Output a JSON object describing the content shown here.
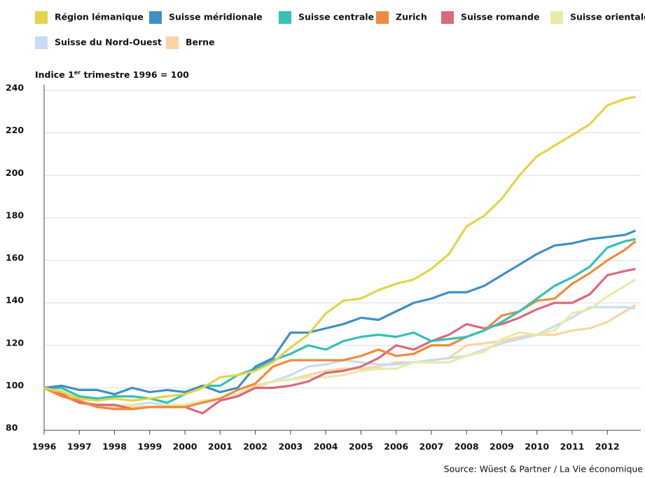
{
  "chart_data": {
    "type": "line",
    "y_label": {
      "text": "Indice 1",
      "superscript": "er",
      "rest": " trimestre 1996 = 100"
    },
    "source": "Source: Wüest & Partner / La Vie économique",
    "legend": "top",
    "grid": true,
    "x": [
      1996,
      1996.5,
      1997,
      1997.5,
      1998,
      1998.5,
      1999,
      1999.5,
      2000,
      2000.5,
      2001,
      2001.5,
      2002,
      2002.5,
      2003,
      2003.5,
      2004,
      2004.5,
      2005,
      2005.5,
      2006,
      2006.5,
      2007,
      2007.5,
      2008,
      2008.5,
      2009,
      2009.5,
      2010,
      2010.5,
      2011,
      2011.5,
      2012,
      2012.5,
      2012.8
    ],
    "xlim": [
      1996,
      2012.95
    ],
    "xticks": [
      1996,
      1997,
      1998,
      1999,
      2000,
      2001,
      2002,
      2003,
      2004,
      2005,
      2006,
      2007,
      2008,
      2009,
      2010,
      2011,
      2012
    ],
    "ylim": [
      80,
      240
    ],
    "yticks": [
      80,
      100,
      120,
      140,
      160,
      180,
      200,
      220,
      240
    ],
    "series": [
      {
        "name": "Région lémanique",
        "color": "#e3d44a",
        "values": [
          100,
          98,
          95,
          94,
          95,
          94,
          95,
          96,
          97,
          100,
          105,
          106,
          108,
          112,
          119,
          125,
          135,
          141,
          142,
          146,
          149,
          151,
          156,
          163,
          176,
          181,
          189,
          200,
          209,
          214,
          219,
          224,
          233,
          236,
          237
        ]
      },
      {
        "name": "Suisse méridionale",
        "color": "#3f8fc4",
        "values": [
          100,
          101,
          99,
          99,
          97,
          100,
          98,
          99,
          98,
          101,
          98,
          100,
          110,
          114,
          126,
          126,
          128,
          130,
          133,
          132,
          136,
          140,
          142,
          145,
          145,
          148,
          153,
          158,
          163,
          167,
          168,
          170,
          171,
          172,
          174
        ]
      },
      {
        "name": "Suisse centrale",
        "color": "#33c1b6",
        "values": [
          100,
          100,
          96,
          95,
          96,
          96,
          95,
          93,
          97,
          101,
          101,
          106,
          109,
          113,
          116,
          120,
          118,
          122,
          124,
          125,
          124,
          126,
          122,
          123,
          124,
          127,
          131,
          136,
          142,
          148,
          152,
          157,
          166,
          169,
          170
        ]
      },
      {
        "name": "Zurich",
        "color": "#f08a3e",
        "values": [
          100,
          96,
          94,
          91,
          90,
          90,
          91,
          91,
          91,
          93,
          95,
          99,
          102,
          110,
          113,
          113,
          113,
          113,
          115,
          118,
          115,
          116,
          120,
          120,
          124,
          127,
          134,
          136,
          141,
          142,
          149,
          154,
          160,
          165,
          169
        ]
      },
      {
        "name": "Suisse romande",
        "color": "#d9697c",
        "values": [
          100,
          97,
          93,
          92,
          92,
          90,
          91,
          91,
          91,
          88,
          94,
          96,
          100,
          100,
          101,
          103,
          107,
          108,
          110,
          114,
          120,
          118,
          122,
          125,
          130,
          128,
          130,
          133,
          137,
          140,
          140,
          144,
          153,
          155,
          156
        ]
      },
      {
        "name": "Suisse orientale",
        "color": "#e9eaa8",
        "values": [
          100,
          99,
          94,
          92,
          92,
          92,
          91,
          92,
          92,
          94,
          95,
          97,
          100,
          103,
          104,
          105,
          105,
          106,
          108,
          109,
          109,
          112,
          112,
          112,
          115,
          117,
          123,
          126,
          125,
          127,
          135,
          137,
          143,
          148,
          151
        ]
      },
      {
        "name": "Suisse du Nord-Ouest",
        "color": "#c8dcf1",
        "values": [
          100,
          97,
          93,
          91,
          92,
          92,
          93,
          92,
          92,
          94,
          95,
          96,
          100,
          103,
          106,
          110,
          111,
          113,
          112,
          111,
          111,
          112,
          113,
          114,
          115,
          118,
          121,
          123,
          125,
          129,
          133,
          138,
          138,
          138,
          137.5
        ]
      },
      {
        "name": "Berne",
        "color": "#fbd3a4",
        "values": [
          100,
          96,
          93,
          92,
          91,
          91,
          91,
          91,
          91,
          93,
          95,
          97,
          101,
          103,
          104,
          106,
          108,
          109,
          109,
          110,
          112,
          112,
          113,
          114,
          120,
          121,
          122,
          124,
          125,
          125,
          127,
          128,
          131,
          136,
          139
        ]
      }
    ]
  }
}
